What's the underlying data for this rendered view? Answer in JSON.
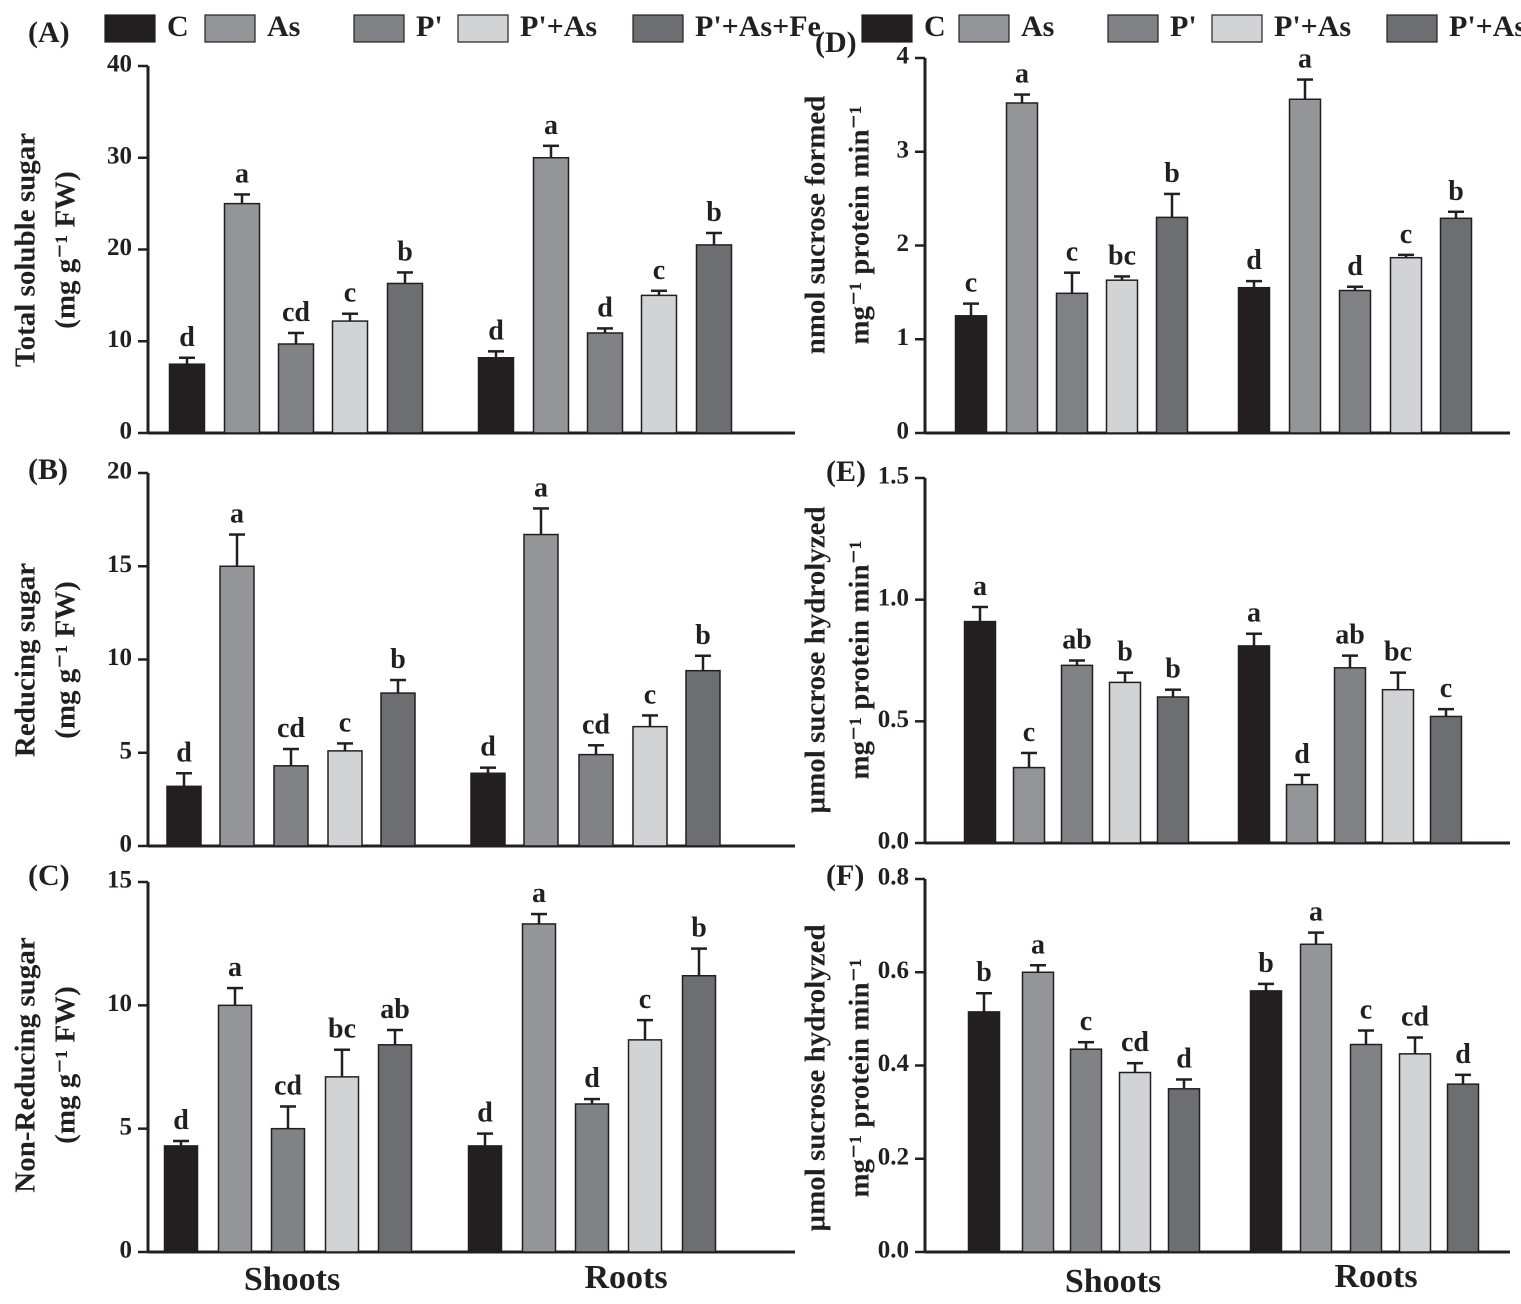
{
  "legend": {
    "left": [
      {
        "label": "C",
        "color": "#231f20"
      },
      {
        "label": "As",
        "color": "#939598"
      },
      {
        "label": "P'",
        "color": "#808285"
      },
      {
        "label": "P'+As",
        "color": "#d1d3d4"
      },
      {
        "label": "P'+As+Fe",
        "color": "#6d6e71"
      }
    ],
    "right": [
      {
        "label": "C",
        "color": "#231f20"
      },
      {
        "label": "As",
        "color": "#939598"
      },
      {
        "label": "P'",
        "color": "#808285"
      },
      {
        "label": "P'+As",
        "color": "#d1d3d4"
      },
      {
        "label": "P'+As+Fe",
        "color": "#6d6e71"
      }
    ]
  },
  "x_groups": {
    "left": [
      "Shoots",
      "Roots"
    ],
    "right": [
      "Shoots",
      "Roots"
    ]
  },
  "chart_data": [
    {
      "panel": "(A)",
      "type": "bar",
      "ylabel": [
        "Total soluble sugar",
        "(mg g⁻¹ FW)"
      ],
      "ylim": [
        0,
        40
      ],
      "yticks": [
        0,
        10,
        20,
        30,
        40
      ],
      "categories": [
        "Shoots",
        "Roots"
      ],
      "series": [
        {
          "name": "C",
          "values": [
            7.5,
            8.2
          ],
          "errors": [
            0.7,
            0.7
          ],
          "letters": [
            "d",
            "d"
          ]
        },
        {
          "name": "As",
          "values": [
            25.0,
            30.0
          ],
          "errors": [
            1.0,
            1.3
          ],
          "letters": [
            "a",
            "a"
          ]
        },
        {
          "name": "P'",
          "values": [
            9.7,
            10.9
          ],
          "errors": [
            1.2,
            0.5
          ],
          "letters": [
            "cd",
            "d"
          ]
        },
        {
          "name": "P'+As",
          "values": [
            12.2,
            15.0
          ],
          "errors": [
            0.8,
            0.5
          ],
          "letters": [
            "c",
            "c"
          ]
        },
        {
          "name": "P'+As+Fe",
          "values": [
            16.3,
            20.5
          ],
          "errors": [
            1.2,
            1.3
          ],
          "letters": [
            "b",
            "b"
          ]
        }
      ]
    },
    {
      "panel": "(B)",
      "type": "bar",
      "ylabel": [
        "Reducing sugar",
        "(mg g⁻¹ FW)"
      ],
      "ylim": [
        0,
        20
      ],
      "yticks": [
        0,
        5,
        10,
        15,
        20
      ],
      "categories": [
        "Shoots",
        "Roots"
      ],
      "series": [
        {
          "name": "C",
          "values": [
            3.2,
            3.9
          ],
          "errors": [
            0.7,
            0.3
          ],
          "letters": [
            "d",
            "d"
          ]
        },
        {
          "name": "As",
          "values": [
            15.0,
            16.7
          ],
          "errors": [
            1.7,
            1.4
          ],
          "letters": [
            "a",
            "a"
          ]
        },
        {
          "name": "P'",
          "values": [
            4.3,
            4.9
          ],
          "errors": [
            0.9,
            0.5
          ],
          "letters": [
            "cd",
            "cd"
          ]
        },
        {
          "name": "P'+As",
          "values": [
            5.1,
            6.4
          ],
          "errors": [
            0.4,
            0.6
          ],
          "letters": [
            "c",
            "c"
          ]
        },
        {
          "name": "P'+As+Fe",
          "values": [
            8.2,
            9.4
          ],
          "errors": [
            0.7,
            0.8
          ],
          "letters": [
            "b",
            "b"
          ]
        }
      ]
    },
    {
      "panel": "(C)",
      "type": "bar",
      "ylabel": [
        "Non-Reducing sugar",
        "(mg g⁻¹ FW)"
      ],
      "ylim": [
        0,
        15
      ],
      "yticks": [
        0,
        5,
        10,
        15
      ],
      "categories": [
        "Shoots",
        "Roots"
      ],
      "series": [
        {
          "name": "C",
          "values": [
            4.3,
            4.3
          ],
          "errors": [
            0.2,
            0.5
          ],
          "letters": [
            "d",
            "d"
          ]
        },
        {
          "name": "As",
          "values": [
            10.0,
            13.3
          ],
          "errors": [
            0.7,
            0.4
          ],
          "letters": [
            "a",
            "a"
          ]
        },
        {
          "name": "P'",
          "values": [
            5.0,
            6.0
          ],
          "errors": [
            0.9,
            0.2
          ],
          "letters": [
            "cd",
            "d"
          ]
        },
        {
          "name": "P'+As",
          "values": [
            7.1,
            8.6
          ],
          "errors": [
            1.1,
            0.8
          ],
          "letters": [
            "bc",
            "c"
          ]
        },
        {
          "name": "P'+As+Fe",
          "values": [
            8.4,
            11.2
          ],
          "errors": [
            0.6,
            1.1
          ],
          "letters": [
            "ab",
            "b"
          ]
        }
      ]
    },
    {
      "panel": "(D)",
      "type": "bar",
      "ylabel": [
        "nmol sucrose formed",
        "mg⁻¹ protein min⁻¹"
      ],
      "ylim": [
        0,
        4
      ],
      "yticks": [
        0,
        1,
        2,
        3,
        4
      ],
      "categories": [
        "Shoots",
        "Roots"
      ],
      "series": [
        {
          "name": "C",
          "values": [
            1.25,
            1.55
          ],
          "errors": [
            0.13,
            0.07
          ],
          "letters": [
            "c",
            "d"
          ]
        },
        {
          "name": "As",
          "values": [
            3.52,
            3.56
          ],
          "errors": [
            0.09,
            0.21
          ],
          "letters": [
            "a",
            "a"
          ]
        },
        {
          "name": "P'",
          "values": [
            1.49,
            1.52
          ],
          "errors": [
            0.22,
            0.04
          ],
          "letters": [
            "c",
            "d"
          ]
        },
        {
          "name": "P'+As",
          "values": [
            1.63,
            1.87
          ],
          "errors": [
            0.04,
            0.03
          ],
          "letters": [
            "bc",
            "c"
          ]
        },
        {
          "name": "P'+As+Fe",
          "values": [
            2.3,
            2.29
          ],
          "errors": [
            0.25,
            0.07
          ],
          "letters": [
            "b",
            "b"
          ]
        }
      ]
    },
    {
      "panel": "(E)",
      "type": "bar",
      "ylabel": [
        "µmol sucrose hydrolyzed",
        "mg⁻¹ protein min⁻¹"
      ],
      "ylim": [
        0,
        1.5
      ],
      "yticks": [
        "0.0",
        "0.5",
        "1.0",
        "1.5"
      ],
      "categories": [
        "Shoots",
        "Roots"
      ],
      "series": [
        {
          "name": "C",
          "values": [
            0.91,
            0.81
          ],
          "errors": [
            0.06,
            0.05
          ],
          "letters": [
            "a",
            "a"
          ]
        },
        {
          "name": "As",
          "values": [
            0.31,
            0.24
          ],
          "errors": [
            0.06,
            0.04
          ],
          "letters": [
            "c",
            "d"
          ]
        },
        {
          "name": "P'",
          "values": [
            0.73,
            0.72
          ],
          "errors": [
            0.02,
            0.05
          ],
          "letters": [
            "ab",
            "ab"
          ]
        },
        {
          "name": "P'+As",
          "values": [
            0.66,
            0.63
          ],
          "errors": [
            0.04,
            0.07
          ],
          "letters": [
            "b",
            "bc"
          ]
        },
        {
          "name": "P'+As+Fe",
          "values": [
            0.6,
            0.52
          ],
          "errors": [
            0.03,
            0.03
          ],
          "letters": [
            "b",
            "c"
          ]
        }
      ]
    },
    {
      "panel": "(F)",
      "type": "bar",
      "ylabel": [
        "µmol sucrose hydrolyzed",
        "mg⁻¹ protein min⁻¹"
      ],
      "ylim": [
        0,
        0.8
      ],
      "yticks": [
        "0.0",
        "0.2",
        "0.4",
        "0.6",
        "0.8"
      ],
      "categories": [
        "Shoots",
        "Roots"
      ],
      "series": [
        {
          "name": "C",
          "values": [
            0.515,
            0.56
          ],
          "errors": [
            0.04,
            0.015
          ],
          "letters": [
            "b",
            "b"
          ]
        },
        {
          "name": "As",
          "values": [
            0.6,
            0.66
          ],
          "errors": [
            0.015,
            0.025
          ],
          "letters": [
            "a",
            "a"
          ]
        },
        {
          "name": "P'",
          "values": [
            0.435,
            0.445
          ],
          "errors": [
            0.015,
            0.03
          ],
          "letters": [
            "c",
            "c"
          ]
        },
        {
          "name": "P'+As",
          "values": [
            0.385,
            0.425
          ],
          "errors": [
            0.02,
            0.035
          ],
          "letters": [
            "cd",
            "cd"
          ]
        },
        {
          "name": "P'+As+Fe",
          "values": [
            0.35,
            0.36
          ],
          "errors": [
            0.02,
            0.02
          ],
          "letters": [
            "d",
            "d"
          ]
        }
      ]
    }
  ]
}
